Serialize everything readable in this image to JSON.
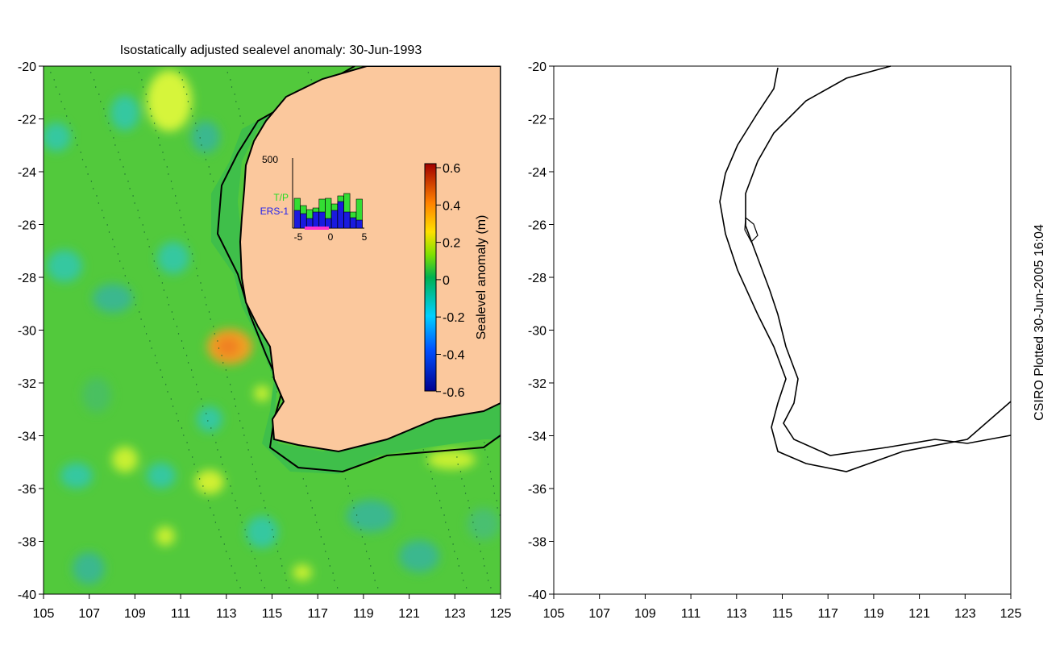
{
  "title": "Isostatically adjusted sealevel anomaly: 30-Jun-1993",
  "x_ticks": [
    "105",
    "107",
    "109",
    "111",
    "113",
    "115",
    "117",
    "119",
    "121",
    "123",
    "125"
  ],
  "y_ticks": [
    "-20",
    "-22",
    "-24",
    "-26",
    "-28",
    "-30",
    "-32",
    "-34",
    "-36",
    "-38",
    "-40"
  ],
  "colorbar": {
    "label": "Sealevel anomaly (m)",
    "ticks": [
      "0.6",
      "0.4",
      "0.2",
      "0",
      "-0.2",
      "-0.4",
      "-0.6"
    ]
  },
  "inset": {
    "y_max_label": "500",
    "tp_label": "T/P",
    "ers_label": "ERS-1",
    "x_ticks": [
      "-5",
      "0",
      "5"
    ]
  },
  "credit": "CSIRO Plotted 30-Jun-2005 16:04",
  "colors": {
    "land": "#fbc89d",
    "ocean_base": "#52c93c",
    "tp_bar": "#33dd33",
    "ers_bar": "#1a1adf",
    "tp_text": "#22dd22",
    "ers_text": "#2222ee"
  }
}
